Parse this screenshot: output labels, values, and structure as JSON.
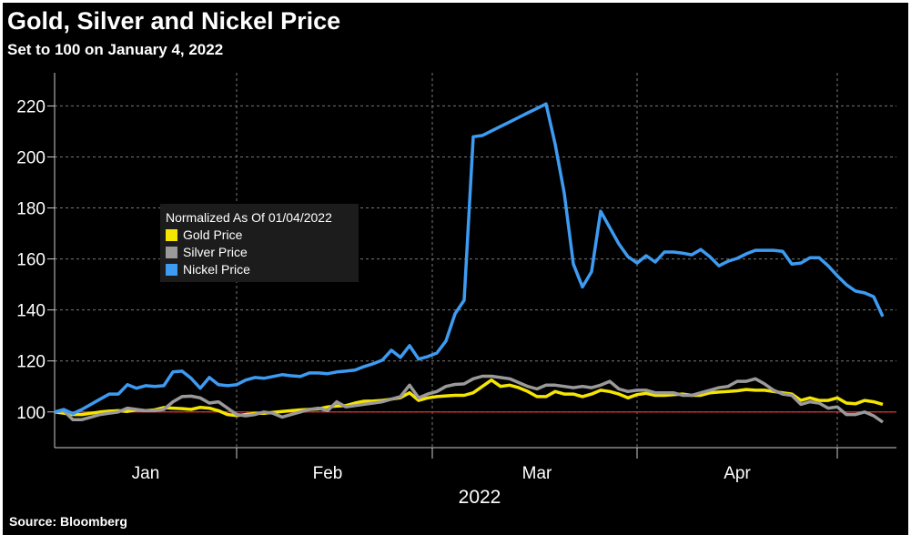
{
  "chart_data": {
    "type": "line",
    "title": "Gold, Silver and Nickel Price",
    "subtitle": "Set to 100 on January 4, 2022",
    "source": "Source: Bloomberg",
    "xlabel": "2022",
    "legend_title": "Normalized As Of 01/04/2022",
    "categories": [
      null,
      null,
      null,
      null,
      null,
      null,
      null,
      null,
      null,
      null,
      "Jan",
      null,
      null,
      null,
      null,
      null,
      null,
      null,
      null,
      null,
      null,
      null,
      null,
      null,
      null,
      null,
      null,
      null,
      null,
      null,
      "Feb",
      null,
      null,
      null,
      null,
      null,
      null,
      null,
      null,
      null,
      null,
      null,
      null,
      null,
      null,
      null,
      null,
      null,
      null,
      null,
      null,
      null,
      null,
      "Mar",
      null,
      null,
      null,
      null,
      null,
      null,
      null,
      null,
      null,
      null,
      null,
      null,
      null,
      null,
      null,
      null,
      null,
      null,
      null,
      null,
      null,
      "Apr",
      null,
      null,
      null,
      null,
      null,
      null,
      null,
      null,
      null,
      null,
      null,
      null,
      null,
      null,
      null,
      null
    ],
    "series": [
      {
        "name": "Gold Price",
        "color": "#f5e600",
        "values": [
          100,
          99.5,
          99,
          99,
          99.5,
          100,
          100.3,
          100.5,
          100.2,
          100.8,
          100.5,
          100.8,
          101.7,
          101.5,
          101.3,
          101,
          101.8,
          101.5,
          100.5,
          99,
          98.6,
          99,
          99.4,
          99.5,
          99.8,
          100.2,
          100.5,
          100.8,
          101,
          101.2,
          102,
          102.3,
          102.5,
          103.5,
          104.2,
          104.3,
          104.5,
          105,
          105.6,
          107.5,
          104.5,
          105.5,
          106,
          106.3,
          106.5,
          106.5,
          107.5,
          110,
          112.5,
          110,
          110.5,
          109.5,
          108,
          106,
          106,
          108,
          107,
          107,
          106,
          107,
          108.5,
          108,
          107,
          105.5,
          106.8,
          107.3,
          106.5,
          106.5,
          106.8,
          107,
          106.5,
          106.5,
          107.5,
          107.8,
          108,
          108.3,
          108.8,
          108.5,
          108.5,
          108,
          107.5,
          107,
          104.5,
          105.5,
          104.5,
          104.5,
          105.5,
          103.5,
          103.2,
          104.5,
          104,
          103
        ]
      },
      {
        "name": "Silver Price",
        "color": "#9a9a9a",
        "values": [
          100,
          100.5,
          97,
          97,
          98,
          99,
          99.5,
          100,
          101.5,
          101,
          100.5,
          100.5,
          101,
          104,
          106,
          106.2,
          105.5,
          103.5,
          104,
          101.5,
          99,
          98.5,
          99,
          100,
          99.5,
          98,
          99,
          100,
          101,
          101.5,
          100.5,
          104,
          102,
          102.5,
          103,
          103.5,
          104,
          105,
          106,
          110.5,
          105.5,
          107,
          108,
          110,
          110.8,
          111,
          113,
          114,
          114,
          113.5,
          113,
          111.5,
          110,
          109,
          110.5,
          110.5,
          110,
          109.5,
          110,
          109.5,
          110.5,
          112,
          109,
          108,
          108.5,
          108.5,
          107.5,
          107.5,
          107.5,
          106.5,
          106.5,
          107.5,
          108.5,
          109.5,
          110,
          112,
          112,
          113,
          111,
          108.5,
          107,
          106.5,
          103,
          104,
          103.5,
          101.5,
          102,
          99,
          99,
          100,
          98.5,
          96
        ]
      },
      {
        "name": "Nickel Price",
        "color": "#3d9bf2",
        "values": [
          100,
          101,
          99.3,
          101,
          103,
          105,
          107,
          107,
          110.7,
          109.3,
          110.3,
          110,
          110.3,
          115.7,
          116,
          113.2,
          109.3,
          113.5,
          110.7,
          110.3,
          110.7,
          112.5,
          113.5,
          113.2,
          113.9,
          114.6,
          114.2,
          113.9,
          115.3,
          115.3,
          115,
          115.7,
          116,
          116.4,
          117.8,
          118.9,
          120.3,
          124.2,
          121.4,
          126,
          120.7,
          121.7,
          123.1,
          127.8,
          138.5,
          143.8,
          207.9,
          208.4,
          210.2,
          212,
          213.7,
          215.5,
          217.3,
          219,
          220.8,
          205,
          185.8,
          158,
          149,
          155,
          178.7,
          172.3,
          165.9,
          160.9,
          158.4,
          161.3,
          158.8,
          162.7,
          162.7,
          162.3,
          161.6,
          163.7,
          160.9,
          157.3,
          159.1,
          160.2,
          162,
          163.4,
          163.4,
          163.4,
          163,
          158,
          158.4,
          160.5,
          160.5,
          157.3,
          153.4,
          149.9,
          147.4,
          146.7,
          145.2,
          137.4
        ]
      }
    ],
    "reference_line": 100,
    "reference_color": "#e0312f",
    "ylim": [
      86,
      233
    ],
    "yticks": [
      100,
      120,
      140,
      160,
      180,
      200,
      220
    ],
    "grid": true
  }
}
